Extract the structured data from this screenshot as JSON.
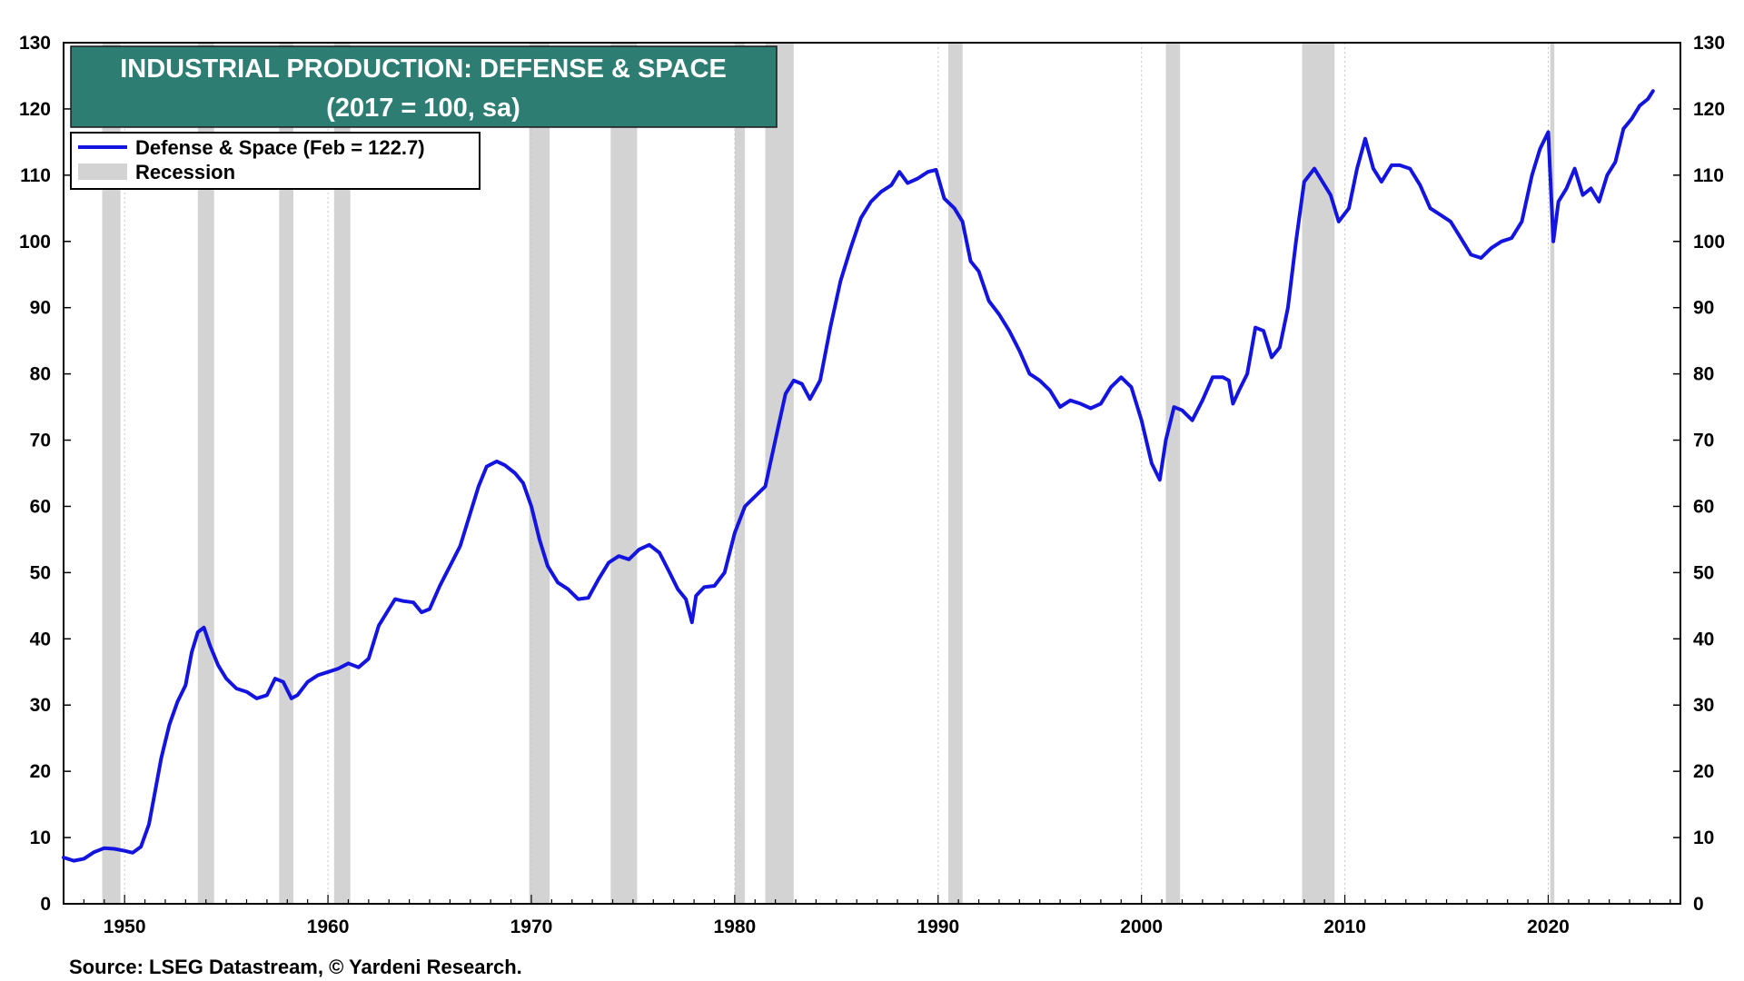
{
  "chart_data": {
    "type": "line",
    "title": "INDUSTRIAL PRODUCTION: DEFENSE & SPACE",
    "subtitle": "(2017 = 100, sa)",
    "source": "Source: LSEG Datastream, © Yardeni Research.",
    "xlim": [
      1947.0,
      2026.5
    ],
    "ylim": [
      0,
      130
    ],
    "y_ticks": [
      0,
      10,
      20,
      30,
      40,
      50,
      60,
      70,
      80,
      90,
      100,
      110,
      120,
      130
    ],
    "x_ticks": [
      1950,
      1960,
      1970,
      1980,
      1990,
      2000,
      2010,
      2020
    ],
    "legend": {
      "placement": "top-left",
      "series_label": "Defense & Space (Feb = 122.7)",
      "recession_label": "Recession"
    },
    "colors": {
      "series": "#1414e0",
      "recession": "#d3d3d3",
      "title_bg": "#2e7d72",
      "grid": "#c8c8c8"
    },
    "recessions": [
      [
        1948.9,
        1949.8
      ],
      [
        1953.6,
        1954.4
      ],
      [
        1957.6,
        1958.3
      ],
      [
        1960.3,
        1961.1
      ],
      [
        1969.9,
        1970.9
      ],
      [
        1973.9,
        1975.2
      ],
      [
        1980.0,
        1980.5
      ],
      [
        1981.5,
        1982.9
      ],
      [
        1990.5,
        1991.2
      ],
      [
        2001.2,
        2001.9
      ],
      [
        2007.9,
        2009.5
      ],
      [
        2020.1,
        2020.3
      ]
    ],
    "series": [
      {
        "name": "Defense & Space",
        "points": [
          [
            1947.0,
            7.0
          ],
          [
            1947.5,
            6.5
          ],
          [
            1948.0,
            6.8
          ],
          [
            1948.5,
            7.8
          ],
          [
            1949.0,
            8.4
          ],
          [
            1949.5,
            8.3
          ],
          [
            1950.0,
            8.0
          ],
          [
            1950.4,
            7.7
          ],
          [
            1950.8,
            8.6
          ],
          [
            1951.2,
            12.0
          ],
          [
            1951.5,
            17.0
          ],
          [
            1951.8,
            22.0
          ],
          [
            1952.2,
            27.0
          ],
          [
            1952.6,
            30.5
          ],
          [
            1953.0,
            33.0
          ],
          [
            1953.3,
            38.0
          ],
          [
            1953.6,
            41.0
          ],
          [
            1953.9,
            41.7
          ],
          [
            1954.2,
            39.0
          ],
          [
            1954.6,
            36.0
          ],
          [
            1955.0,
            34.0
          ],
          [
            1955.5,
            32.5
          ],
          [
            1956.0,
            32.0
          ],
          [
            1956.5,
            31.0
          ],
          [
            1957.0,
            31.5
          ],
          [
            1957.4,
            34.0
          ],
          [
            1957.8,
            33.5
          ],
          [
            1958.2,
            31.0
          ],
          [
            1958.5,
            31.5
          ],
          [
            1959.0,
            33.5
          ],
          [
            1959.5,
            34.5
          ],
          [
            1960.0,
            35.0
          ],
          [
            1960.5,
            35.5
          ],
          [
            1961.0,
            36.3
          ],
          [
            1961.5,
            35.7
          ],
          [
            1962.0,
            37.0
          ],
          [
            1962.5,
            42.0
          ],
          [
            1963.0,
            44.5
          ],
          [
            1963.3,
            46.0
          ],
          [
            1963.7,
            45.7
          ],
          [
            1964.2,
            45.5
          ],
          [
            1964.6,
            44.0
          ],
          [
            1965.0,
            44.5
          ],
          [
            1965.5,
            48.0
          ],
          [
            1966.0,
            51.0
          ],
          [
            1966.5,
            54.0
          ],
          [
            1967.0,
            59.0
          ],
          [
            1967.4,
            63.0
          ],
          [
            1967.8,
            66.0
          ],
          [
            1968.3,
            66.8
          ],
          [
            1968.7,
            66.2
          ],
          [
            1969.2,
            65.0
          ],
          [
            1969.6,
            63.5
          ],
          [
            1970.0,
            60.0
          ],
          [
            1970.4,
            55.0
          ],
          [
            1970.8,
            51.0
          ],
          [
            1971.3,
            48.5
          ],
          [
            1971.8,
            47.5
          ],
          [
            1972.3,
            46.0
          ],
          [
            1972.8,
            46.2
          ],
          [
            1973.3,
            49.0
          ],
          [
            1973.8,
            51.5
          ],
          [
            1974.3,
            52.5
          ],
          [
            1974.8,
            52.0
          ],
          [
            1975.3,
            53.5
          ],
          [
            1975.8,
            54.2
          ],
          [
            1976.3,
            53.0
          ],
          [
            1976.8,
            50.0
          ],
          [
            1977.2,
            47.5
          ],
          [
            1977.6,
            46.0
          ],
          [
            1977.9,
            42.5
          ],
          [
            1978.1,
            46.5
          ],
          [
            1978.5,
            47.8
          ],
          [
            1979.0,
            48.0
          ],
          [
            1979.5,
            50.0
          ],
          [
            1980.0,
            56.0
          ],
          [
            1980.5,
            60.0
          ],
          [
            1981.0,
            61.5
          ],
          [
            1981.5,
            63.0
          ],
          [
            1982.0,
            70.0
          ],
          [
            1982.5,
            77.0
          ],
          [
            1982.9,
            79.0
          ],
          [
            1983.3,
            78.5
          ],
          [
            1983.7,
            76.2
          ],
          [
            1984.2,
            79.0
          ],
          [
            1984.7,
            87.0
          ],
          [
            1985.2,
            94.0
          ],
          [
            1985.7,
            99.0
          ],
          [
            1986.2,
            103.5
          ],
          [
            1986.7,
            106.0
          ],
          [
            1987.2,
            107.5
          ],
          [
            1987.7,
            108.5
          ],
          [
            1988.1,
            110.5
          ],
          [
            1988.5,
            108.8
          ],
          [
            1989.0,
            109.5
          ],
          [
            1989.5,
            110.5
          ],
          [
            1989.9,
            110.8
          ],
          [
            1990.3,
            106.5
          ],
          [
            1990.8,
            105.0
          ],
          [
            1991.2,
            103.0
          ],
          [
            1991.6,
            97.0
          ],
          [
            1992.0,
            95.5
          ],
          [
            1992.5,
            91.0
          ],
          [
            1993.0,
            89.0
          ],
          [
            1993.5,
            86.5
          ],
          [
            1994.0,
            83.5
          ],
          [
            1994.5,
            80.0
          ],
          [
            1995.0,
            79.0
          ],
          [
            1995.5,
            77.5
          ],
          [
            1996.0,
            75.0
          ],
          [
            1996.5,
            76.0
          ],
          [
            1997.0,
            75.5
          ],
          [
            1997.5,
            74.8
          ],
          [
            1998.0,
            75.5
          ],
          [
            1998.5,
            78.0
          ],
          [
            1999.0,
            79.5
          ],
          [
            1999.5,
            78.0
          ],
          [
            2000.0,
            73.0
          ],
          [
            2000.5,
            66.5
          ],
          [
            2000.9,
            64.0
          ],
          [
            2001.2,
            70.0
          ],
          [
            2001.6,
            75.0
          ],
          [
            2002.0,
            74.5
          ],
          [
            2002.5,
            73.0
          ],
          [
            2003.0,
            76.0
          ],
          [
            2003.5,
            79.5
          ],
          [
            2004.0,
            79.5
          ],
          [
            2004.3,
            79.0
          ],
          [
            2004.5,
            75.5
          ],
          [
            2004.8,
            77.5
          ],
          [
            2005.2,
            80.0
          ],
          [
            2005.6,
            87.0
          ],
          [
            2006.0,
            86.5
          ],
          [
            2006.4,
            82.5
          ],
          [
            2006.8,
            84.0
          ],
          [
            2007.2,
            90.0
          ],
          [
            2007.6,
            100.0
          ],
          [
            2008.0,
            109.0
          ],
          [
            2008.5,
            111.0
          ],
          [
            2008.9,
            109.0
          ],
          [
            2009.3,
            107.0
          ],
          [
            2009.7,
            103.0
          ],
          [
            2010.2,
            105.0
          ],
          [
            2010.6,
            111.0
          ],
          [
            2011.0,
            115.5
          ],
          [
            2011.4,
            111.0
          ],
          [
            2011.8,
            109.0
          ],
          [
            2012.3,
            111.5
          ],
          [
            2012.7,
            111.5
          ],
          [
            2013.2,
            111.0
          ],
          [
            2013.7,
            108.5
          ],
          [
            2014.2,
            105.0
          ],
          [
            2014.7,
            104.0
          ],
          [
            2015.2,
            103.0
          ],
          [
            2015.7,
            100.5
          ],
          [
            2016.2,
            98.0
          ],
          [
            2016.7,
            97.5
          ],
          [
            2017.2,
            99.0
          ],
          [
            2017.7,
            100.0
          ],
          [
            2018.2,
            100.5
          ],
          [
            2018.7,
            103.0
          ],
          [
            2019.2,
            110.0
          ],
          [
            2019.6,
            114.0
          ],
          [
            2020.0,
            116.5
          ],
          [
            2020.25,
            100.0
          ],
          [
            2020.5,
            106.0
          ],
          [
            2020.9,
            108.0
          ],
          [
            2021.3,
            111.0
          ],
          [
            2021.7,
            107.0
          ],
          [
            2022.1,
            108.0
          ],
          [
            2022.5,
            106.0
          ],
          [
            2022.9,
            110.0
          ],
          [
            2023.3,
            112.0
          ],
          [
            2023.7,
            117.0
          ],
          [
            2024.1,
            118.5
          ],
          [
            2024.5,
            120.5
          ],
          [
            2024.9,
            121.5
          ],
          [
            2025.15,
            122.7
          ]
        ]
      }
    ]
  }
}
